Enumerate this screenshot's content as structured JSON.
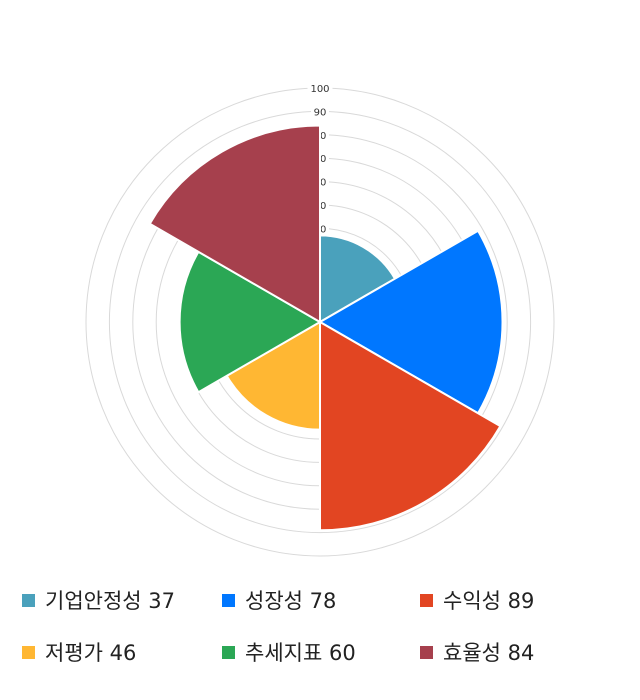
{
  "chart_data": {
    "type": "polar-area",
    "categories": [
      "기업안정성",
      "성장성",
      "수익성",
      "저평가",
      "추세지표",
      "효율성"
    ],
    "values": [
      37,
      78,
      89,
      46,
      60,
      84
    ],
    "colors": [
      "#4aa1bc",
      "#0077ff",
      "#e24522",
      "#ffb733",
      "#2ba755",
      "#a6404d"
    ],
    "rlim": [
      0,
      100
    ],
    "ticks": [
      100,
      90,
      80,
      70,
      60,
      50,
      40,
      30,
      20,
      10
    ],
    "grid": true,
    "legend_position": "bottom"
  },
  "legend": [
    {
      "label": "기업안정성 37"
    },
    {
      "label": "성장성 78"
    },
    {
      "label": "수익성 89"
    },
    {
      "label": "저평가 46"
    },
    {
      "label": "추세지표 60"
    },
    {
      "label": "효율성 84"
    }
  ]
}
